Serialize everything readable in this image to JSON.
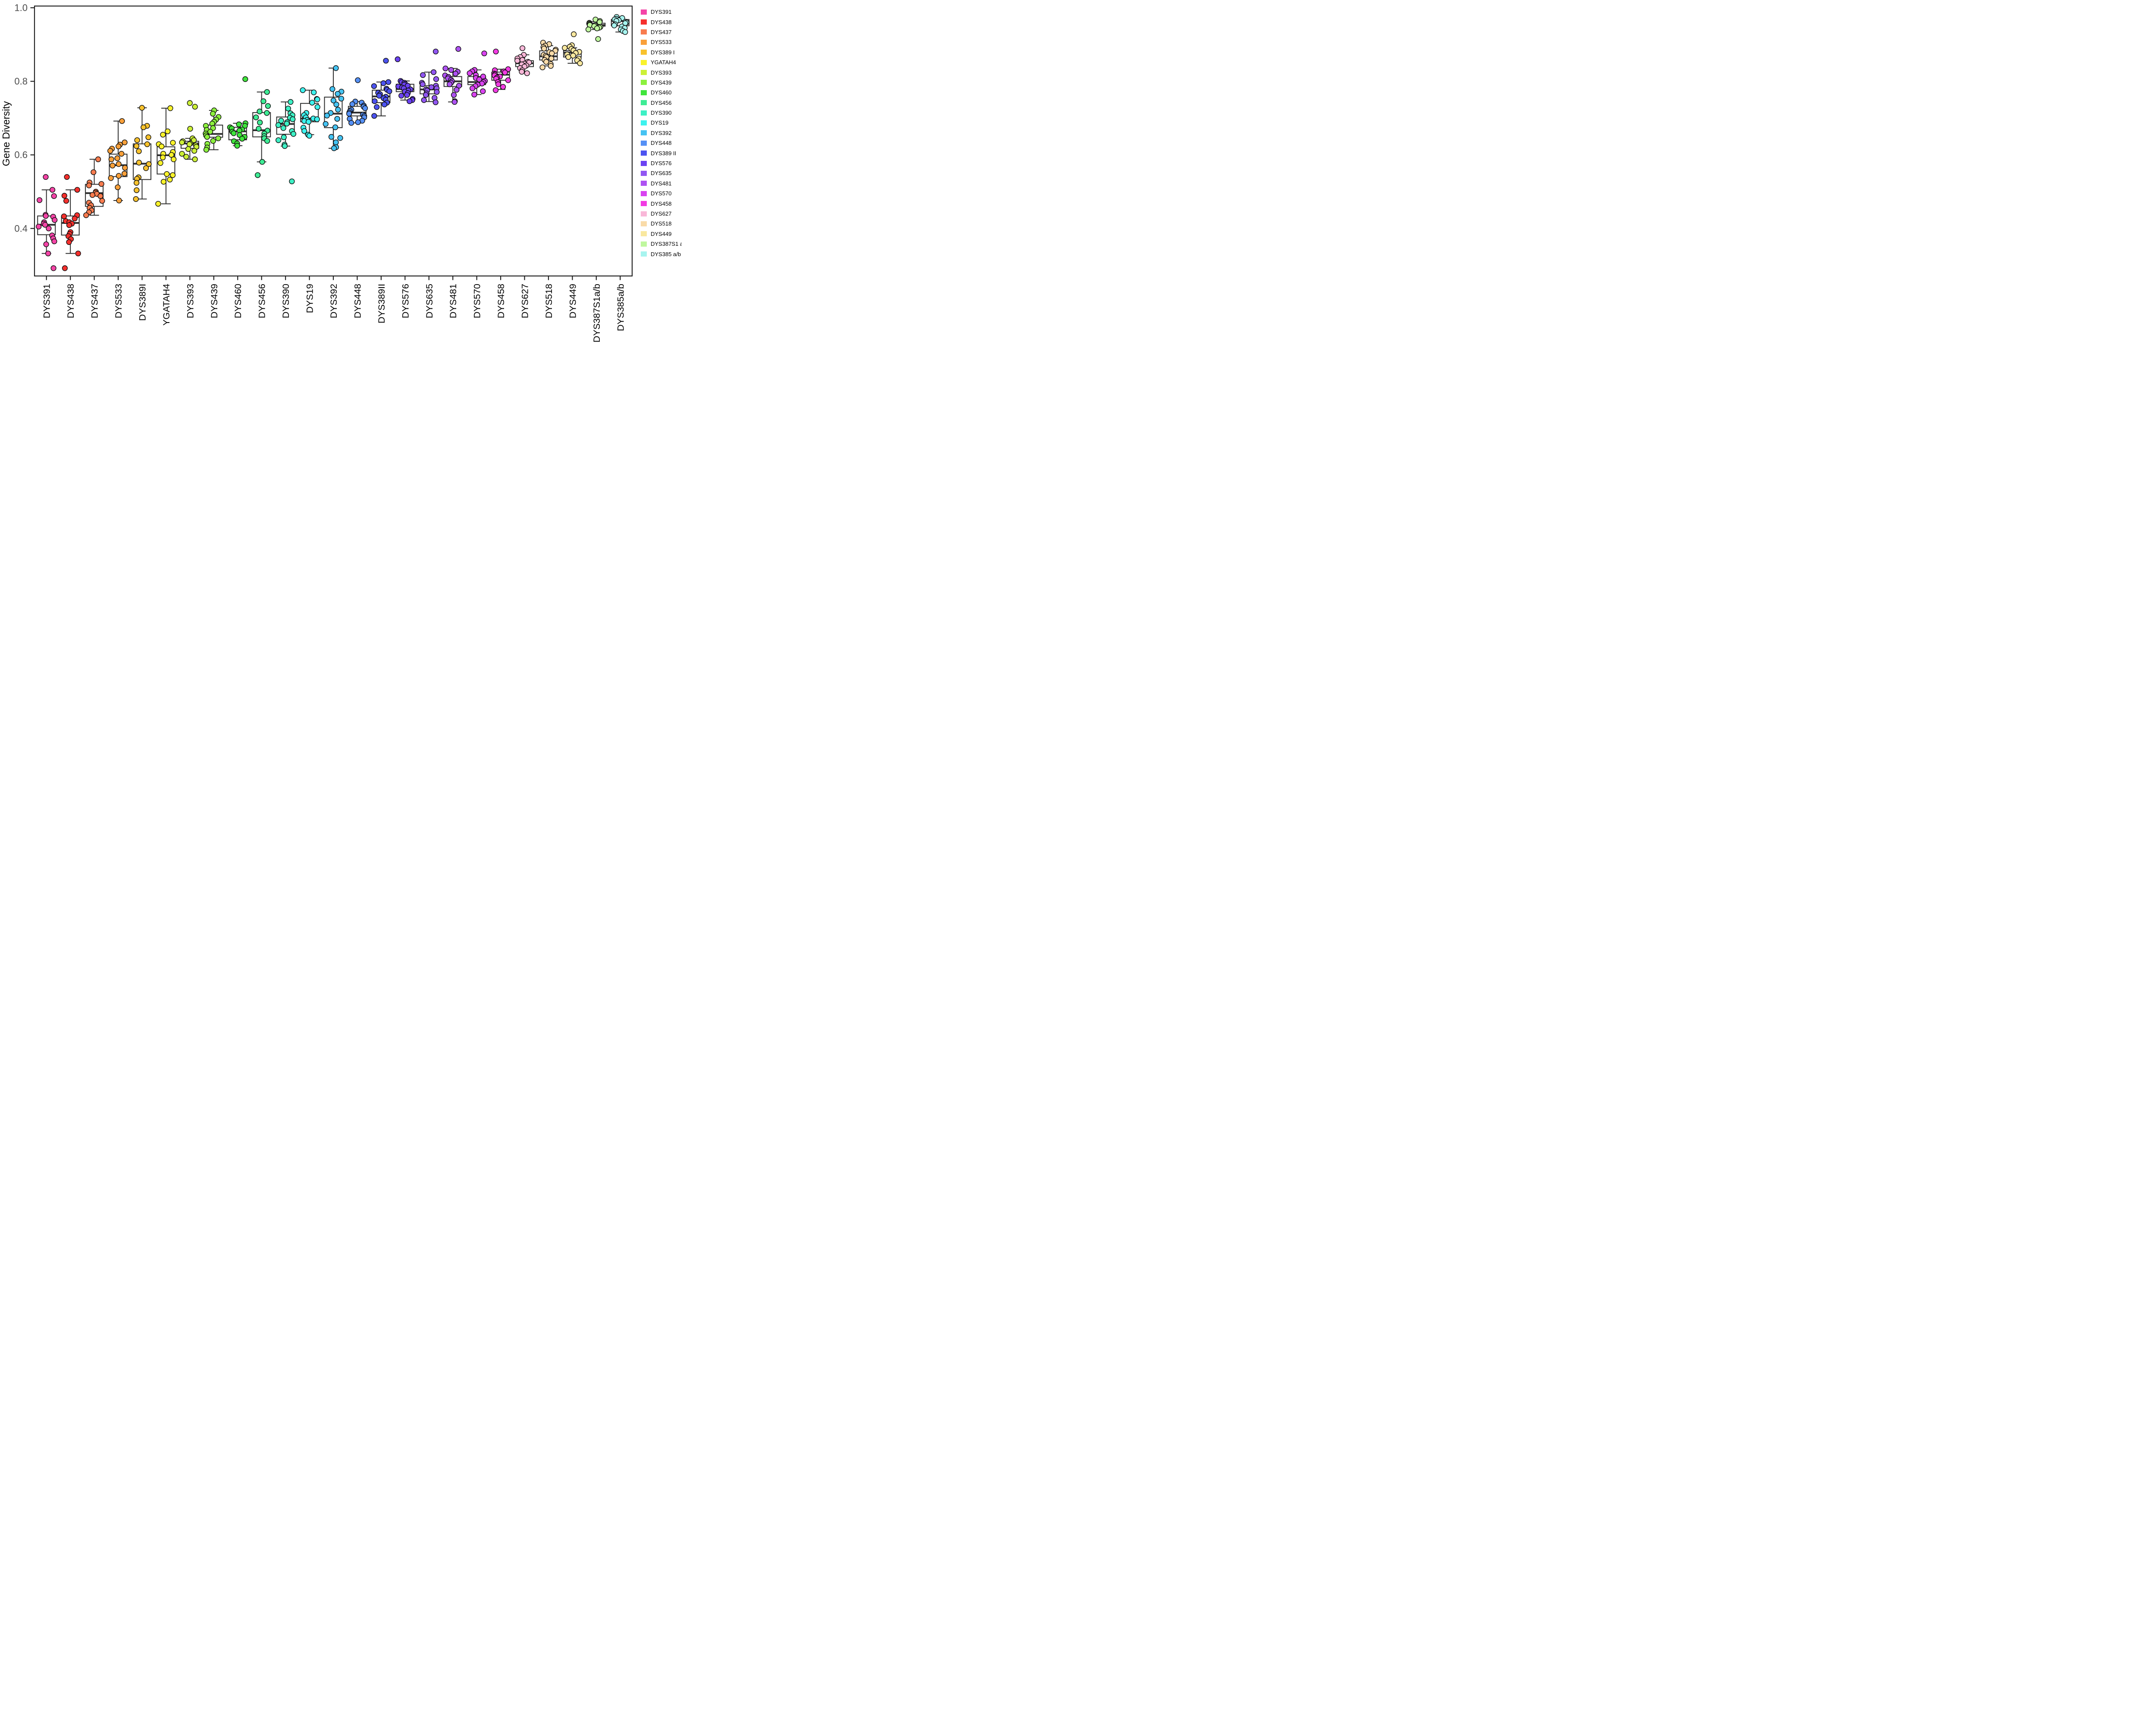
{
  "figure": {
    "background": "#ffffff",
    "panel_border_color": "#1f1f1f"
  },
  "chart_data": {
    "type": "boxplot-jitter",
    "title": "",
    "xlabel": "",
    "ylabel": "Gene Diversity",
    "ylim": [
      0.27,
      1.005
    ],
    "yticks": [
      0.4,
      0.6,
      0.8,
      1.0
    ],
    "ytick_labels": [
      "0.4",
      "0.6",
      "0.8",
      "1.0"
    ],
    "grid": false,
    "legend_position": "right",
    "box_color": "#2e2e2e",
    "tick_label_color": "#4d4d4d",
    "series": [
      {
        "marker": "DYS391",
        "legend_label": "DYS391",
        "color": "#F444A7",
        "box": {
          "lo": 0.332,
          "q1": 0.383,
          "med": 0.41,
          "q3": 0.434,
          "hi": 0.505
        },
        "points": [
          0.54,
          0.505,
          0.488,
          0.477,
          0.437,
          0.434,
          0.432,
          0.423,
          0.417,
          0.413,
          0.41,
          0.405,
          0.4,
          0.381,
          0.373,
          0.365,
          0.357,
          0.332,
          0.292
        ]
      },
      {
        "marker": "DYS438",
        "legend_label": "DYS438",
        "color": "#F5302D",
        "box": {
          "lo": 0.332,
          "q1": 0.382,
          "med": 0.415,
          "q3": 0.434,
          "hi": 0.505
        },
        "points": [
          0.54,
          0.505,
          0.489,
          0.475,
          0.436,
          0.433,
          0.427,
          0.42,
          0.417,
          0.413,
          0.409,
          0.39,
          0.385,
          0.379,
          0.371,
          0.363,
          0.332,
          0.292
        ]
      },
      {
        "marker": "DYS437",
        "legend_label": "DYS437",
        "color": "#F87C4F",
        "box": {
          "lo": 0.436,
          "q1": 0.46,
          "med": 0.496,
          "q3": 0.52,
          "hi": 0.588
        },
        "points": [
          0.588,
          0.553,
          0.525,
          0.521,
          0.517,
          0.5,
          0.497,
          0.494,
          0.491,
          0.488,
          0.475,
          0.47,
          0.463,
          0.456,
          0.449,
          0.444,
          0.436
        ]
      },
      {
        "marker": "DYS533",
        "legend_label": "DYS533",
        "color": "#F9A03A",
        "box": {
          "lo": 0.476,
          "q1": 0.541,
          "med": 0.572,
          "q3": 0.602,
          "hi": 0.692
        },
        "points": [
          0.692,
          0.634,
          0.628,
          0.623,
          0.617,
          0.611,
          0.603,
          0.591,
          0.588,
          0.575,
          0.571,
          0.565,
          0.549,
          0.543,
          0.537,
          0.512,
          0.476
        ]
      },
      {
        "marker": "DYS389I",
        "legend_label": "DYS389 I",
        "color": "#F8C22D",
        "box": {
          "lo": 0.48,
          "q1": 0.533,
          "med": 0.576,
          "q3": 0.63,
          "hi": 0.728
        },
        "points": [
          0.728,
          0.679,
          0.675,
          0.648,
          0.64,
          0.629,
          0.624,
          0.61,
          0.579,
          0.575,
          0.564,
          0.539,
          0.535,
          0.524,
          0.504,
          0.48
        ]
      },
      {
        "marker": "YGATAH4",
        "legend_label": "YGATAH4",
        "color": "#F9F22B",
        "box": {
          "lo": 0.467,
          "q1": 0.548,
          "med": 0.599,
          "q3": 0.622,
          "hi": 0.727
        },
        "points": [
          0.727,
          0.664,
          0.655,
          0.633,
          0.629,
          0.623,
          0.608,
          0.603,
          0.6,
          0.593,
          0.588,
          0.578,
          0.548,
          0.545,
          0.533,
          0.527,
          0.467
        ]
      },
      {
        "marker": "DYS393",
        "legend_label": "DYS393",
        "color": "#CCF037",
        "box": {
          "lo": 0.588,
          "q1": 0.618,
          "med": 0.631,
          "q3": 0.637,
          "hi": 0.645
        },
        "points": [
          0.741,
          0.731,
          0.671,
          0.645,
          0.64,
          0.637,
          0.634,
          0.631,
          0.629,
          0.626,
          0.622,
          0.616,
          0.611,
          0.603,
          0.595,
          0.588
        ]
      },
      {
        "marker": "DYS439",
        "legend_label": "DYS439",
        "color": "#8CF03E",
        "box": {
          "lo": 0.614,
          "q1": 0.648,
          "med": 0.657,
          "q3": 0.681,
          "hi": 0.721
        },
        "points": [
          0.721,
          0.712,
          0.703,
          0.696,
          0.69,
          0.685,
          0.679,
          0.673,
          0.668,
          0.663,
          0.658,
          0.653,
          0.649,
          0.645,
          0.638,
          0.63,
          0.62,
          0.614
        ]
      },
      {
        "marker": "DYS460",
        "legend_label": "DYS460",
        "color": "#40E53C",
        "box": {
          "lo": 0.625,
          "q1": 0.641,
          "med": 0.664,
          "q3": 0.675,
          "hi": 0.686
        },
        "points": [
          0.806,
          0.686,
          0.683,
          0.679,
          0.675,
          0.672,
          0.669,
          0.666,
          0.663,
          0.659,
          0.654,
          0.649,
          0.644,
          0.637,
          0.631,
          0.625
        ]
      },
      {
        "marker": "DYS456",
        "legend_label": "DYS456",
        "color": "#3EEC95",
        "box": {
          "lo": 0.581,
          "q1": 0.649,
          "med": 0.667,
          "q3": 0.715,
          "hi": 0.771
        },
        "points": [
          0.771,
          0.746,
          0.733,
          0.718,
          0.714,
          0.702,
          0.688,
          0.671,
          0.666,
          0.658,
          0.651,
          0.645,
          0.638,
          0.581,
          0.545
        ]
      },
      {
        "marker": "DYS390",
        "legend_label": "DYS390",
        "color": "#3DF0C5",
        "box": {
          "lo": 0.624,
          "q1": 0.656,
          "med": 0.684,
          "q3": 0.703,
          "hi": 0.744
        },
        "points": [
          0.744,
          0.726,
          0.713,
          0.708,
          0.701,
          0.697,
          0.693,
          0.689,
          0.685,
          0.681,
          0.673,
          0.665,
          0.657,
          0.648,
          0.64,
          0.628,
          0.624,
          0.528
        ]
      },
      {
        "marker": "DYS19",
        "legend_label": "DYS19",
        "color": "#3DF2EE",
        "box": {
          "lo": 0.655,
          "q1": 0.69,
          "med": 0.699,
          "q3": 0.74,
          "hi": 0.776
        },
        "points": [
          0.776,
          0.77,
          0.752,
          0.751,
          0.742,
          0.73,
          0.714,
          0.708,
          0.702,
          0.699,
          0.697,
          0.695,
          0.692,
          0.69,
          0.674,
          0.665,
          0.655,
          0.652
        ]
      },
      {
        "marker": "DYS392",
        "legend_label": "DYS392",
        "color": "#45C3F2",
        "box": {
          "lo": 0.618,
          "q1": 0.674,
          "med": 0.712,
          "q3": 0.757,
          "hi": 0.836
        },
        "points": [
          0.836,
          0.779,
          0.772,
          0.766,
          0.753,
          0.748,
          0.737,
          0.723,
          0.714,
          0.707,
          0.698,
          0.684,
          0.675,
          0.649,
          0.646,
          0.634,
          0.621,
          0.618
        ]
      },
      {
        "marker": "DYS448",
        "legend_label": "DYS448",
        "color": "#5590F5",
        "box": {
          "lo": 0.687,
          "q1": 0.706,
          "med": 0.715,
          "q3": 0.732,
          "hi": 0.745
        },
        "points": [
          0.803,
          0.745,
          0.742,
          0.738,
          0.734,
          0.731,
          0.727,
          0.723,
          0.719,
          0.715,
          0.712,
          0.709,
          0.706,
          0.702,
          0.698,
          0.693,
          0.689,
          0.687
        ]
      },
      {
        "marker": "DYS389II",
        "legend_label": "DYS389 II",
        "color": "#4C53F0",
        "box": {
          "lo": 0.706,
          "q1": 0.742,
          "med": 0.759,
          "q3": 0.776,
          "hi": 0.798
        },
        "points": [
          0.856,
          0.798,
          0.795,
          0.787,
          0.78,
          0.777,
          0.773,
          0.769,
          0.765,
          0.761,
          0.758,
          0.754,
          0.75,
          0.746,
          0.742,
          0.737,
          0.73,
          0.706
        ]
      },
      {
        "marker": "DYS576",
        "legend_label": "DYS576",
        "color": "#6B42F2",
        "box": {
          "lo": 0.749,
          "q1": 0.772,
          "med": 0.779,
          "q3": 0.792,
          "hi": 0.801
        },
        "points": [
          0.86,
          0.801,
          0.798,
          0.796,
          0.793,
          0.791,
          0.788,
          0.786,
          0.783,
          0.781,
          0.778,
          0.775,
          0.772,
          0.768,
          0.763,
          0.761,
          0.752,
          0.749,
          0.746
        ]
      },
      {
        "marker": "DYS635",
        "legend_label": "DYS635",
        "color": "#9156F2",
        "box": {
          "lo": 0.745,
          "q1": 0.766,
          "med": 0.778,
          "q3": 0.788,
          "hi": 0.825
        },
        "points": [
          0.881,
          0.825,
          0.817,
          0.806,
          0.796,
          0.792,
          0.788,
          0.784,
          0.781,
          0.778,
          0.775,
          0.771,
          0.767,
          0.763,
          0.755,
          0.749,
          0.743
        ]
      },
      {
        "marker": "DYS481",
        "legend_label": "DYS481",
        "color": "#AE52F2",
        "box": {
          "lo": 0.744,
          "q1": 0.786,
          "med": 0.8,
          "q3": 0.813,
          "hi": 0.835
        },
        "points": [
          0.888,
          0.835,
          0.831,
          0.826,
          0.821,
          0.816,
          0.812,
          0.808,
          0.804,
          0.8,
          0.796,
          0.792,
          0.788,
          0.777,
          0.763,
          0.746,
          0.744
        ]
      },
      {
        "marker": "DYS570",
        "legend_label": "DYS570",
        "color": "#D943F0",
        "box": {
          "lo": 0.764,
          "q1": 0.791,
          "med": 0.798,
          "q3": 0.813,
          "hi": 0.831
        },
        "points": [
          0.876,
          0.831,
          0.827,
          0.822,
          0.817,
          0.813,
          0.809,
          0.805,
          0.801,
          0.798,
          0.794,
          0.791,
          0.787,
          0.781,
          0.773,
          0.764
        ]
      },
      {
        "marker": "DYS458",
        "legend_label": "DYS458",
        "color": "#F23BE3",
        "box": {
          "lo": 0.778,
          "q1": 0.803,
          "med": 0.818,
          "q3": 0.825,
          "hi": 0.833
        },
        "points": [
          0.881,
          0.833,
          0.83,
          0.827,
          0.824,
          0.821,
          0.819,
          0.816,
          0.813,
          0.81,
          0.807,
          0.803,
          0.798,
          0.792,
          0.785,
          0.776
        ]
      },
      {
        "marker": "DYS627",
        "legend_label": "DYS627",
        "color": "#F9B7D8",
        "box": {
          "lo": 0.826,
          "q1": 0.84,
          "med": 0.849,
          "q3": 0.856,
          "hi": 0.872
        },
        "points": [
          0.89,
          0.872,
          0.866,
          0.862,
          0.858,
          0.856,
          0.853,
          0.851,
          0.848,
          0.846,
          0.843,
          0.84,
          0.836,
          0.83,
          0.826,
          0.822
        ]
      },
      {
        "marker": "DYS518",
        "legend_label": "DYS518",
        "color": "#F9DBA8",
        "box": {
          "lo": 0.842,
          "q1": 0.858,
          "med": 0.868,
          "q3": 0.883,
          "hi": 0.897
        },
        "points": [
          0.905,
          0.901,
          0.897,
          0.893,
          0.889,
          0.886,
          0.883,
          0.879,
          0.876,
          0.872,
          0.869,
          0.866,
          0.862,
          0.858,
          0.853,
          0.847,
          0.842,
          0.838
        ]
      },
      {
        "marker": "DYS449",
        "legend_label": "DYS449",
        "color": "#F9E89F",
        "box": {
          "lo": 0.849,
          "q1": 0.866,
          "med": 0.878,
          "q3": 0.883,
          "hi": 0.891
        },
        "points": [
          0.928,
          0.898,
          0.894,
          0.891,
          0.888,
          0.884,
          0.88,
          0.877,
          0.873,
          0.87,
          0.866,
          0.862,
          0.857,
          0.849
        ]
      },
      {
        "marker": "DYS387S1a/b",
        "legend_label": "DYS387S1 a/b",
        "color": "#BFF79E",
        "box": {
          "lo": 0.941,
          "q1": 0.95,
          "med": 0.953,
          "q3": 0.958,
          "hi": 0.962
        },
        "points": [
          0.968,
          0.964,
          0.961,
          0.959,
          0.957,
          0.955,
          0.953,
          0.952,
          0.95,
          0.948,
          0.946,
          0.944,
          0.941,
          0.915
        ]
      },
      {
        "marker": "DYS385a/b",
        "legend_label": "DYS385 a/b",
        "color": "#A7F4EF",
        "box": {
          "lo": 0.934,
          "q1": 0.951,
          "med": 0.964,
          "q3": 0.968,
          "hi": 0.973
        },
        "points": [
          0.975,
          0.972,
          0.97,
          0.968,
          0.966,
          0.964,
          0.962,
          0.96,
          0.958,
          0.955,
          0.952,
          0.949,
          0.945,
          0.941,
          0.937,
          0.934
        ]
      }
    ]
  }
}
